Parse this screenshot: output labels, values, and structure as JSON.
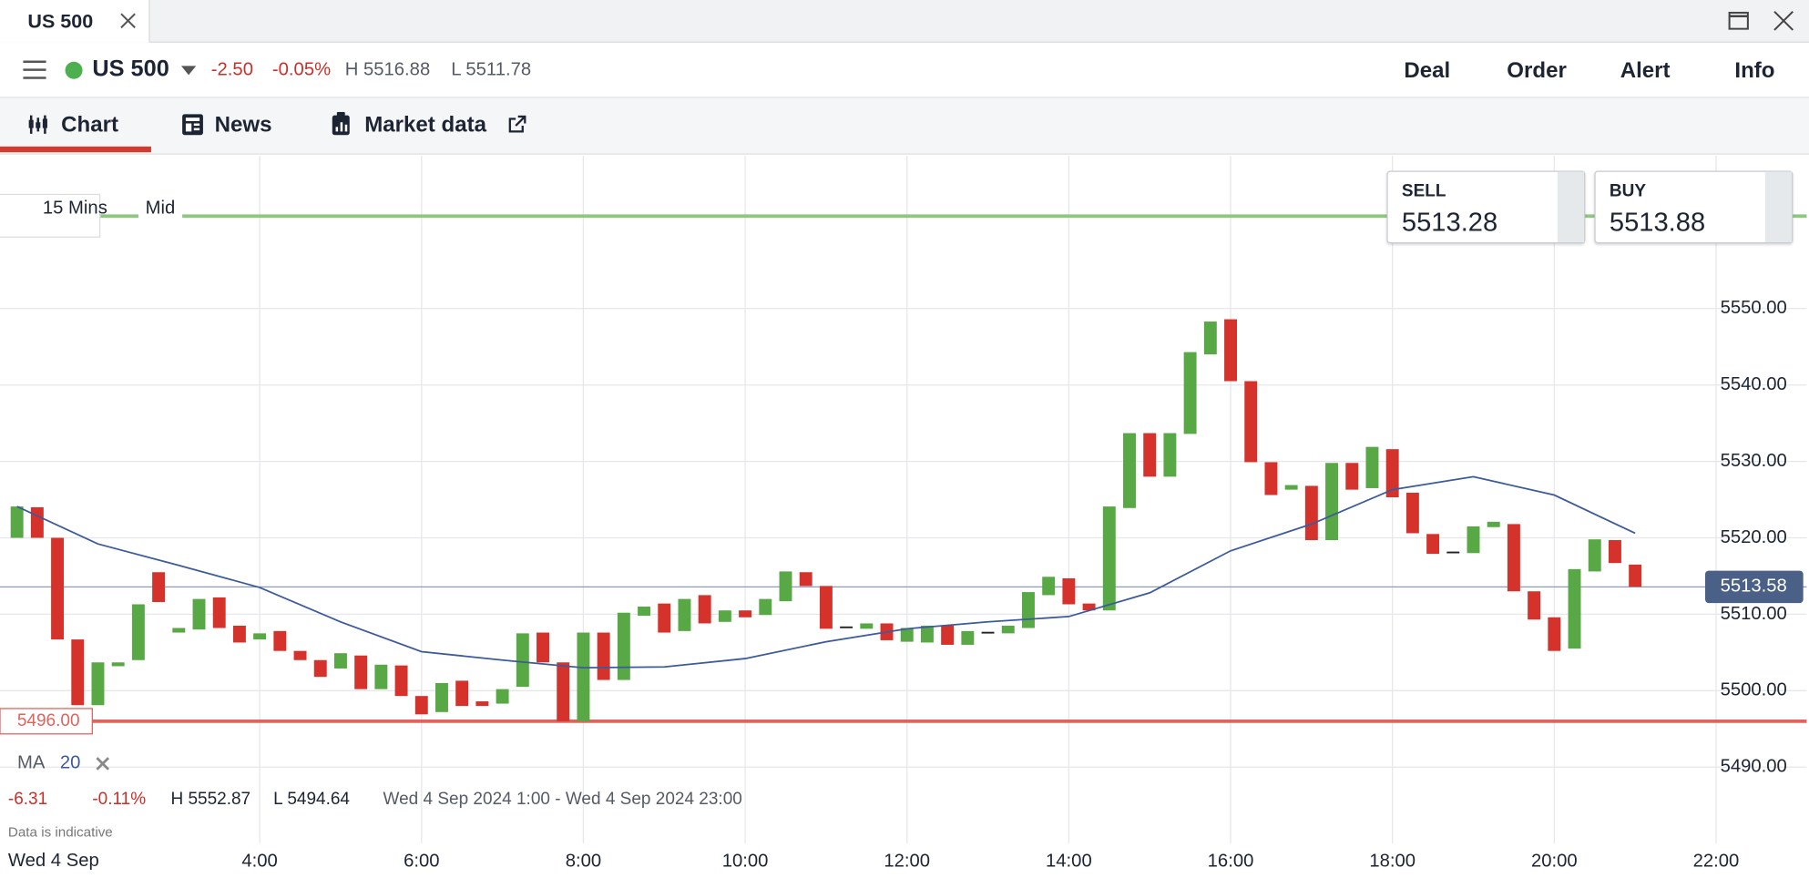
{
  "tab": {
    "title": "US 500"
  },
  "header": {
    "instrument": "US 500",
    "change": "-2.50",
    "change_pct": "-0.05%",
    "high": "H 5516.88",
    "low": "L 5511.78",
    "actions": [
      "Deal",
      "Order",
      "Alert",
      "Info"
    ]
  },
  "tabs": [
    "Chart",
    "News",
    "Market data"
  ],
  "chart_data": {
    "type": "candlestick",
    "interval": "15 Mins",
    "price": "Mid",
    "x": [
      1,
      1.25,
      1.5,
      1.75,
      2,
      2.25,
      2.5,
      2.75,
      3,
      3.25,
      3.5,
      3.75,
      4,
      4.25,
      4.5,
      4.75,
      5,
      5.25,
      5.5,
      5.75,
      6,
      6.25,
      6.5,
      6.75,
      7,
      7.25,
      7.5,
      7.75,
      8,
      8.25,
      8.5,
      8.75,
      9,
      9.25,
      9.5,
      9.75,
      10,
      10.25,
      10.5,
      10.75,
      11,
      11.25,
      11.5,
      11.75,
      12,
      12.25,
      12.5,
      12.75,
      13,
      13.25,
      13.5,
      13.75,
      14,
      14.25,
      14.5,
      14.75,
      15,
      15.25,
      15.5,
      15.75,
      16,
      16.25,
      16.5,
      16.75,
      17,
      17.25,
      17.5,
      17.75,
      18,
      18.25,
      18.5,
      18.75,
      19,
      19.25,
      19.5,
      19.75,
      20,
      20.25,
      20.5,
      20.75,
      21
    ],
    "open": [
      5520,
      5524,
      5520,
      5506.7,
      5498.1,
      5503.2,
      5504,
      5515.5,
      5507.6,
      5508,
      5512.2,
      5508.5,
      5506.7,
      5507.8,
      5505.2,
      5504,
      5502.9,
      5504.6,
      5500.2,
      5503.3,
      5499.3,
      5497.2,
      5501.3,
      5498.6,
      5498.3,
      5500.5,
      5507.6,
      5503.7,
      5496,
      5507.6,
      5501.4,
      5509.8,
      5511.4,
      5507.8,
      5512.5,
      5509,
      5510.5,
      5509.9,
      5511.7,
      5515.5,
      5513.7,
      5508.3,
      5508.1,
      5508.8,
      5506.4,
      5506.3,
      5508.5,
      5506,
      5507.6,
      5507.5,
      5508.2,
      5512.5,
      5514.7,
      5511.4,
      5510.5,
      5523.9,
      5533.7,
      5528,
      5533.6,
      5544,
      5548.6,
      5540.5,
      5529.9,
      5526.3,
      5526.8,
      5519.7,
      5529.8,
      5526.5,
      5531.6,
      5525.9,
      5520.5,
      5518.2,
      5518,
      5521.4,
      5521.8,
      5513,
      5509.6,
      5505.5,
      5515.6,
      5519.7,
      5516.5
    ],
    "high": "H 5552.87",
    "low": "L 5494.64",
    "close": [
      5524.1,
      5520,
      5506.7,
      5498.1,
      5503.7,
      5503.7,
      5511.3,
      5511.6,
      5508.2,
      5512,
      5508.2,
      5506.3,
      5507.5,
      5505.2,
      5504,
      5501.8,
      5504.9,
      5500.2,
      5503.4,
      5499.3,
      5496.9,
      5501,
      5498,
      5498,
      5500.2,
      5507.5,
      5503.7,
      5496,
      5507.6,
      5501.4,
      5510.2,
      5511,
      5507.6,
      5512,
      5508.8,
      5510.5,
      5509.6,
      5512,
      5515.6,
      5513.7,
      5508.1,
      5508.4,
      5508.8,
      5506.6,
      5508.2,
      5508.5,
      5506,
      5507.8,
      5507.7,
      5508.5,
      5512.9,
      5514.9,
      5511.3,
      5510.5,
      5524.1,
      5533.7,
      5528,
      5533.7,
      5544.3,
      5548.3,
      5540.5,
      5529.9,
      5525.6,
      5526.9,
      5519.7,
      5529.8,
      5526.3,
      5531.9,
      5525.3,
      5520.6,
      5517.9,
      5518.1,
      5521.5,
      5522.1,
      5513,
      5509.3,
      5505.2,
      5515.9,
      5519.8,
      5516.7,
      5513.6
    ],
    "up_color": "#58a846",
    "down_color": "#d5322b",
    "flat_color": "#222222",
    "xlim": [
      0.79,
      23.12
    ],
    "xticks": [
      {
        "value": 4,
        "label": "4:00"
      },
      {
        "value": 6,
        "label": "6:00"
      },
      {
        "value": 8,
        "label": "8:00"
      },
      {
        "value": 10,
        "label": "10:00"
      },
      {
        "value": 12,
        "label": "12:00"
      },
      {
        "value": 14,
        "label": "14:00"
      },
      {
        "value": 16,
        "label": "16:00"
      },
      {
        "value": 18,
        "label": "18:00"
      },
      {
        "value": 20,
        "label": "20:00"
      },
      {
        "value": 22,
        "label": "22:00"
      }
    ],
    "ylim": [
      5475.5,
      5570
    ],
    "yticks": [
      {
        "value": 5490,
        "label": "5490.00"
      },
      {
        "value": 5500,
        "label": "5500.00"
      },
      {
        "value": 5510,
        "label": "5510.00"
      },
      {
        "value": 5520,
        "label": "5520.00"
      },
      {
        "value": 5530,
        "label": "5530.00"
      },
      {
        "value": 5540,
        "label": "5540.00"
      },
      {
        "value": 5550,
        "label": "5550.00"
      }
    ],
    "grid": true,
    "moving_average": {
      "name": "MA",
      "period": 20,
      "color": "#3c5a9c",
      "x": [
        1,
        2,
        3,
        4,
        5,
        6,
        7,
        8,
        9,
        10,
        11,
        12,
        13,
        14,
        15,
        16,
        17,
        18,
        19,
        20,
        21
      ],
      "values": [
        5524.1,
        5519.2,
        5516.4,
        5513.5,
        5509,
        5505.1,
        5504,
        5503,
        5503.1,
        5504.2,
        5506.4,
        5508.1,
        5509,
        5509.7,
        5512.8,
        5518.3,
        5521.8,
        5526.3,
        5528,
        5525.6,
        5520.6
      ]
    },
    "price_lines": [
      {
        "value": 5562.1,
        "color": "#8cc97e"
      },
      {
        "value": 5496,
        "label": "5496.00",
        "color": "#e2625c"
      },
      {
        "value": 5513.58,
        "label": "5513.58",
        "color": "#8d9bc4"
      }
    ],
    "date_label": "Wed 4 Sep",
    "change": -6.31,
    "change_pct": "-0.11%",
    "range": "Wed 4 Sep 2024 1:00 - Wed 4 Sep 2024 23:00",
    "note": "Data is indicative",
    "sell": {
      "label": "SELL",
      "price": 5513.28
    },
    "buy": {
      "label": "BUY",
      "price": 5513.88
    }
  }
}
